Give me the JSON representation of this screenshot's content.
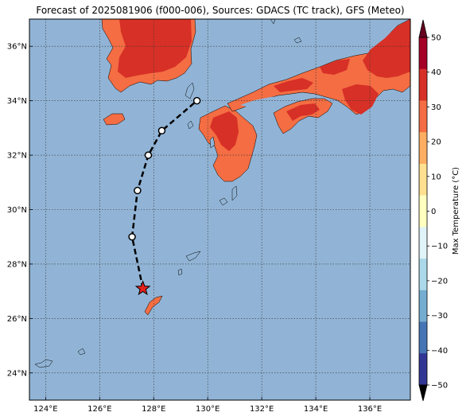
{
  "title": "Forecast of 2025081906 (f000-006), Sources: GDACS (TC track), GFS (Meteo)",
  "map": {
    "lon_range": [
      123.4,
      137.5
    ],
    "lat_range": [
      23.0,
      37.0
    ],
    "lon_ticks": [
      124,
      126,
      128,
      130,
      132,
      134,
      136
    ],
    "lat_ticks": [
      24,
      26,
      28,
      30,
      32,
      34,
      36
    ],
    "lon_tick_labels": [
      "124°E",
      "126°E",
      "128°E",
      "130°E",
      "132°E",
      "134°E",
      "136°E"
    ],
    "lat_tick_labels": [
      "24°N",
      "26°N",
      "28°N",
      "30°N",
      "32°N",
      "34°N",
      "36°N"
    ],
    "ocean_color": "#91b4d6",
    "gridlines": true
  },
  "colorbar": {
    "label": "Max Temperature (°C)",
    "ticks": [
      50,
      40,
      30,
      20,
      10,
      0,
      -10,
      -20,
      -30,
      -40,
      -50
    ],
    "tick_labels": [
      "50",
      "40",
      "30",
      "20",
      "10",
      "0",
      "−10",
      "−20",
      "−30",
      "−40",
      "−50"
    ],
    "colors_top_to_bottom": [
      "#a50026",
      "#d73027",
      "#f46d43",
      "#fdae61",
      "#fee090",
      "#ffffbf",
      "#e0f3f8",
      "#abd9e9",
      "#74add1",
      "#4575b4",
      "#313695"
    ]
  },
  "chart_data": {
    "type": "map",
    "title": "Forecast of 2025081906 (f000-006), Sources: GDACS (TC track), GFS (Meteo)",
    "track": [
      {
        "lon": 127.6,
        "lat": 27.1,
        "marker": "star"
      },
      {
        "lon": 127.2,
        "lat": 29.0,
        "marker": "circle"
      },
      {
        "lon": 127.4,
        "lat": 30.7,
        "marker": "circle"
      },
      {
        "lon": 127.8,
        "lat": 32.0,
        "marker": "circle"
      },
      {
        "lon": 128.3,
        "lat": 32.9,
        "marker": "circle"
      },
      {
        "lon": 129.6,
        "lat": 34.0,
        "marker": "circle"
      }
    ],
    "track_style": "dashed black",
    "current_position_color": "#e8201a"
  }
}
